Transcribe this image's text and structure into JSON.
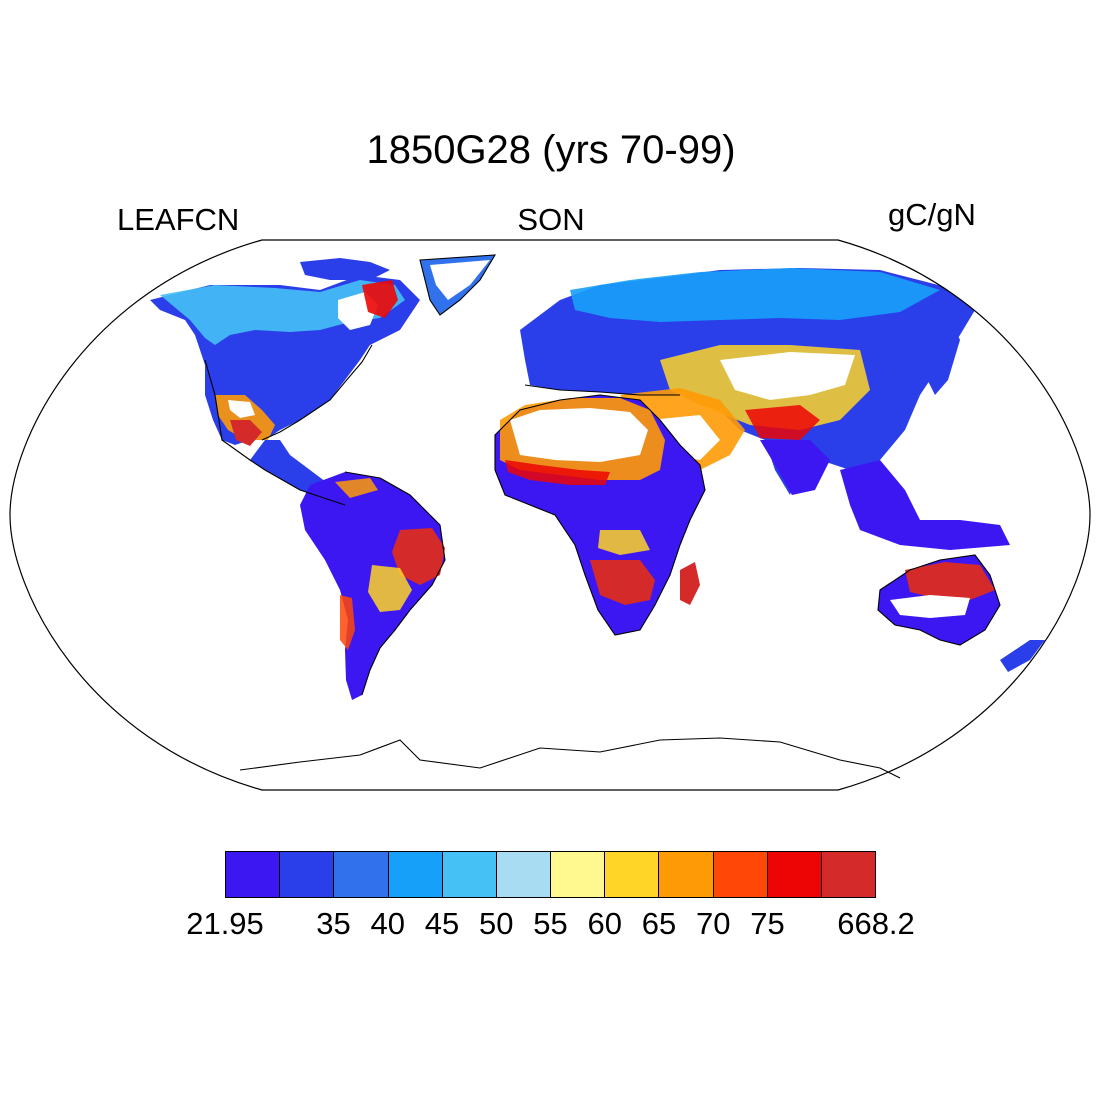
{
  "title": "1850G28 (yrs 70-99)",
  "left_label": "LEAFCN",
  "center_label": "SON",
  "right_label": "gC/gN",
  "colorbar": {
    "colors": [
      "#3c17f2",
      "#2a3fea",
      "#3172ec",
      "#17a0fa",
      "#45c1f6",
      "#a8dcf3",
      "#fff98f",
      "#ffd527",
      "#ff9a07",
      "#ff4707",
      "#ed0505",
      "#d42a2a"
    ],
    "labels": [
      {
        "text": "21.95",
        "boundary": 0
      },
      {
        "text": "35",
        "boundary": 2
      },
      {
        "text": "40",
        "boundary": 3
      },
      {
        "text": "45",
        "boundary": 4
      },
      {
        "text": "50",
        "boundary": 5
      },
      {
        "text": "55",
        "boundary": 6
      },
      {
        "text": "60",
        "boundary": 7
      },
      {
        "text": "65",
        "boundary": 8
      },
      {
        "text": "70",
        "boundary": 9
      },
      {
        "text": "75",
        "boundary": 10
      },
      {
        "text": "668.2",
        "boundary": 12
      }
    ]
  },
  "map": {
    "projection": "Robinson",
    "variable": "LEAFCN",
    "season": "SON",
    "units": "gC/gN"
  }
}
